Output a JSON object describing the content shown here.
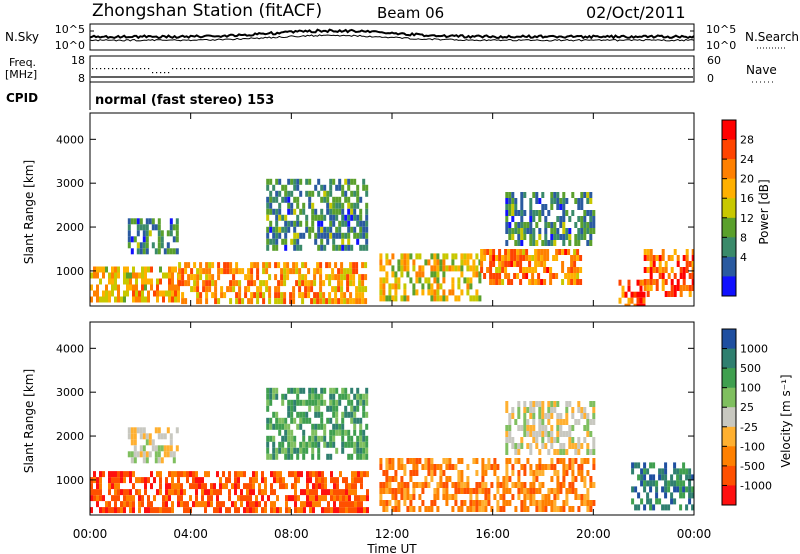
{
  "header": {
    "station": "Zhongshan Station (fitACF)",
    "beam": "Beam 06",
    "date": "02/Oct/2011"
  },
  "noise_panel": {
    "left_label": "N.Sky",
    "right_label": "N.Search",
    "left_ticks": [
      "10^5",
      "10^0"
    ],
    "right_ticks": [
      "10^5",
      "10^0"
    ]
  },
  "freq_panel": {
    "left_label_1": "Freq.",
    "left_label_2": "[MHz]",
    "right_label": "Nave",
    "left_ticks": [
      "18",
      "8"
    ],
    "right_ticks": [
      "60",
      "0"
    ]
  },
  "cpid": {
    "label": "CPID",
    "value": "normal (fast stereo) 153"
  },
  "x_axis": {
    "label": "Time UT",
    "ticks": [
      "00:00",
      "04:00",
      "08:00",
      "12:00",
      "16:00",
      "20:00",
      "00:00"
    ]
  },
  "power_colorbar": {
    "label": "Power [dB]",
    "ticks": [
      "28",
      "24",
      "20",
      "16",
      "12",
      "8",
      "4"
    ],
    "colors": [
      "#ff0000",
      "#ff4400",
      "#ff8000",
      "#ffb000",
      "#c8c800",
      "#5aa02c",
      "#3a8a6a",
      "#2a5aa0",
      "#1010ff"
    ]
  },
  "velocity_colorbar": {
    "label": "Velocity [m s⁻¹]",
    "ticks": [
      "1000",
      "500",
      "100",
      "25",
      "-25",
      "-100",
      "-500",
      "-1000"
    ],
    "colors": [
      "#1f4fa0",
      "#2f7f6f",
      "#3f9f4f",
      "#7fbf5f",
      "#c8c8c0",
      "#ffb030",
      "#ff8000",
      "#ff5000",
      "#ff1010"
    ]
  },
  "chart_data": [
    {
      "type": "heatmap",
      "title": "",
      "xlabel": "Time UT",
      "ylabel": "Slant Range [km]",
      "xlim": [
        "00:00",
        "24:00"
      ],
      "ylim": [
        200,
        4600
      ],
      "x_ticks": [
        "00:00",
        "04:00",
        "08:00",
        "12:00",
        "16:00",
        "20:00",
        "00:00"
      ],
      "y_ticks": [
        1000,
        2000,
        3000,
        4000
      ],
      "colorbar": {
        "label": "Power [dB]",
        "range": [
          0,
          32
        ],
        "ticks": [
          4,
          8,
          12,
          16,
          20,
          24,
          28
        ]
      },
      "regions": [
        {
          "t0": 0.0,
          "t1": 3.5,
          "r0": 300,
          "r1": 1100,
          "value": 20
        },
        {
          "t0": 1.5,
          "t1": 3.5,
          "r0": 1500,
          "r1": 2200,
          "value": 8
        },
        {
          "t0": 3.5,
          "t1": 11.0,
          "r0": 300,
          "r1": 1200,
          "value": 22
        },
        {
          "t0": 7.0,
          "t1": 11.0,
          "r0": 1500,
          "r1": 3100,
          "value": 8
        },
        {
          "t0": 11.5,
          "t1": 15.5,
          "r0": 400,
          "r1": 1400,
          "value": 18
        },
        {
          "t0": 15.5,
          "t1": 19.5,
          "r0": 800,
          "r1": 1500,
          "value": 24
        },
        {
          "t0": 16.5,
          "t1": 20.0,
          "r0": 1700,
          "r1": 2800,
          "value": 8
        },
        {
          "t0": 21.0,
          "t1": 22.0,
          "r0": 250,
          "r1": 800,
          "value": 28
        },
        {
          "t0": 22.0,
          "t1": 24.0,
          "r0": 500,
          "r1": 1500,
          "value": 26
        }
      ]
    },
    {
      "type": "heatmap",
      "title": "",
      "xlabel": "Time UT",
      "ylabel": "Slant Range [km]",
      "xlim": [
        "00:00",
        "24:00"
      ],
      "ylim": [
        200,
        4600
      ],
      "x_ticks": [
        "00:00",
        "04:00",
        "08:00",
        "12:00",
        "16:00",
        "20:00",
        "00:00"
      ],
      "y_ticks": [
        1000,
        2000,
        3000,
        4000
      ],
      "colorbar": {
        "label": "Velocity [m s⁻¹]",
        "ticks": [
          1000,
          500,
          100,
          25,
          -25,
          -100,
          -500,
          -1000
        ]
      },
      "regions": [
        {
          "t0": 0.0,
          "t1": 11.0,
          "r0": 300,
          "r1": 1200,
          "value": -300
        },
        {
          "t0": 1.5,
          "t1": 3.5,
          "r0": 1500,
          "r1": 2200,
          "value": 0
        },
        {
          "t0": 7.0,
          "t1": 11.0,
          "r0": 1500,
          "r1": 3100,
          "value": 50
        },
        {
          "t0": 11.5,
          "t1": 20.0,
          "r0": 400,
          "r1": 1500,
          "value": -200
        },
        {
          "t0": 16.5,
          "t1": 20.0,
          "r0": 1700,
          "r1": 2800,
          "value": 0
        },
        {
          "t0": 21.5,
          "t1": 24.0,
          "r0": 400,
          "r1": 1400,
          "value": 300
        }
      ]
    }
  ]
}
